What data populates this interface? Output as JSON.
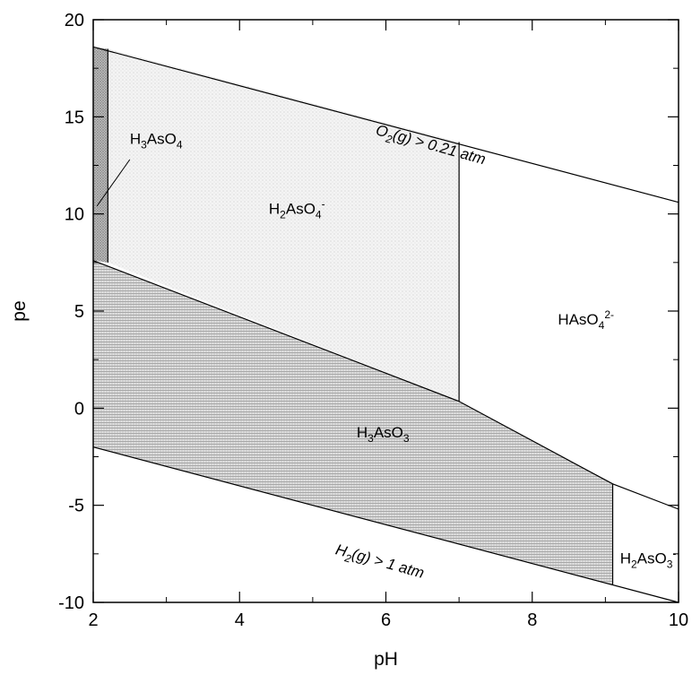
{
  "chart_data": {
    "type": "area",
    "xlabel": "pH",
    "ylabel": "pe",
    "xlim": [
      2,
      10
    ],
    "ylim": [
      -10,
      20
    ],
    "x_ticks": [
      2,
      4,
      6,
      8,
      10
    ],
    "y_ticks": [
      20,
      15,
      10,
      5,
      0,
      -5,
      -10
    ],
    "pattern_colors": {
      "light": "#cfcfcf",
      "medium": "#9a9a9a",
      "dark": "#7a7a7a"
    },
    "regions": [
      {
        "name": "H3AsO4",
        "shade": "dark",
        "polygon": [
          [
            2,
            18.6
          ],
          [
            2.2,
            18.5
          ],
          [
            2.2,
            7.5
          ],
          [
            2,
            7.6
          ]
        ]
      },
      {
        "name": "H2AsO4-",
        "shade": "light",
        "polygon": [
          [
            2.2,
            18.5
          ],
          [
            7.0,
            13.7
          ],
          [
            7.0,
            0.35
          ],
          [
            2.2,
            7.5
          ]
        ]
      },
      {
        "name": "HAsO4 2-",
        "shade": "none",
        "polygon": [
          [
            7.0,
            13.7
          ],
          [
            10,
            10.6
          ],
          [
            10,
            -5.2
          ],
          [
            9.1,
            -3.9
          ],
          [
            7.0,
            0.35
          ]
        ]
      },
      {
        "name": "H3AsO3",
        "shade": "medium",
        "polygon": [
          [
            2,
            7.6
          ],
          [
            7.0,
            0.35
          ],
          [
            9.1,
            -3.9
          ],
          [
            9.1,
            -9.1
          ],
          [
            2,
            -2.0
          ]
        ]
      },
      {
        "name": "H2AsO3-",
        "shade": "none",
        "polygon": [
          [
            9.1,
            -3.9
          ],
          [
            10,
            -5.2
          ],
          [
            10,
            -10
          ],
          [
            9.1,
            -9.1
          ]
        ]
      }
    ],
    "boundaries": [
      {
        "name": "O2 upper limit",
        "points": [
          [
            2,
            18.6
          ],
          [
            10,
            10.6
          ]
        ]
      },
      {
        "name": "H2 lower limit",
        "points": [
          [
            2,
            -2.0
          ],
          [
            10,
            -10.0
          ]
        ]
      },
      {
        "name": "H3AsO4/H2AsO4- boundary",
        "points": [
          [
            2.2,
            18.5
          ],
          [
            2.2,
            7.5
          ]
        ]
      },
      {
        "name": "H2AsO4-/HAsO4 2- boundary",
        "points": [
          [
            7.0,
            13.7
          ],
          [
            7.0,
            0.35
          ]
        ]
      },
      {
        "name": "arsenate/arsenite boundary",
        "points": [
          [
            2,
            7.6
          ],
          [
            7.0,
            0.35
          ],
          [
            9.1,
            -3.9
          ],
          [
            10,
            -5.2
          ]
        ]
      },
      {
        "name": "H3AsO3/H2AsO3- boundary",
        "points": [
          [
            9.1,
            -3.9
          ],
          [
            9.1,
            -9.1
          ]
        ]
      }
    ],
    "labels": [
      {
        "key": "h3aso4",
        "base": "H",
        "parts": [
          {
            "t": "H"
          },
          {
            "t": "3",
            "sub": true
          },
          {
            "t": "AsO"
          },
          {
            "t": "4",
            "sub": true
          }
        ],
        "x": 2.5,
        "y": 13.6,
        "rotate": 0,
        "cls": "region-label"
      },
      {
        "key": "h2aso4",
        "parts": [
          {
            "t": "H"
          },
          {
            "t": "2",
            "sub": true
          },
          {
            "t": "AsO"
          },
          {
            "t": "4",
            "sub": true
          },
          {
            "t": "-",
            "sup": true
          }
        ],
        "x": 4.4,
        "y": 10.0,
        "rotate": 0,
        "cls": "region-label"
      },
      {
        "key": "haso4",
        "parts": [
          {
            "t": "HAsO"
          },
          {
            "t": "4",
            "sub": true
          },
          {
            "t": "2-",
            "sup": true
          }
        ],
        "x": 8.35,
        "y": 4.3,
        "rotate": 0,
        "cls": "region-label"
      },
      {
        "key": "h3aso3",
        "parts": [
          {
            "t": "H"
          },
          {
            "t": "3",
            "sub": true
          },
          {
            "t": "AsO"
          },
          {
            "t": "3",
            "sub": true
          }
        ],
        "x": 5.6,
        "y": -1.5,
        "rotate": 0,
        "cls": "region-label"
      },
      {
        "key": "h2aso3",
        "parts": [
          {
            "t": "H"
          },
          {
            "t": "2",
            "sub": true
          },
          {
            "t": "AsO"
          },
          {
            "t": "3",
            "sub": true
          },
          {
            "t": "-",
            "sup": true
          }
        ],
        "x": 9.2,
        "y": -8.0,
        "rotate": 0,
        "cls": "region-label"
      },
      {
        "key": "o2",
        "parts": [
          {
            "t": "O"
          },
          {
            "t": "2",
            "sub": true
          },
          {
            "t": "(g) > 0.21 atm"
          }
        ],
        "x": 5.85,
        "y": 14.1,
        "rotate": 15.5,
        "cls": "boundary-label"
      },
      {
        "key": "h2g",
        "parts": [
          {
            "t": "H"
          },
          {
            "t": "2",
            "sub": true
          },
          {
            "t": "(g) > 1 atm"
          }
        ],
        "x": 5.3,
        "y": -7.5,
        "rotate": 15.5,
        "cls": "boundary-label"
      }
    ],
    "leader_line": {
      "from": [
        2.05,
        10.4
      ],
      "to": [
        2.5,
        12.8
      ]
    }
  }
}
